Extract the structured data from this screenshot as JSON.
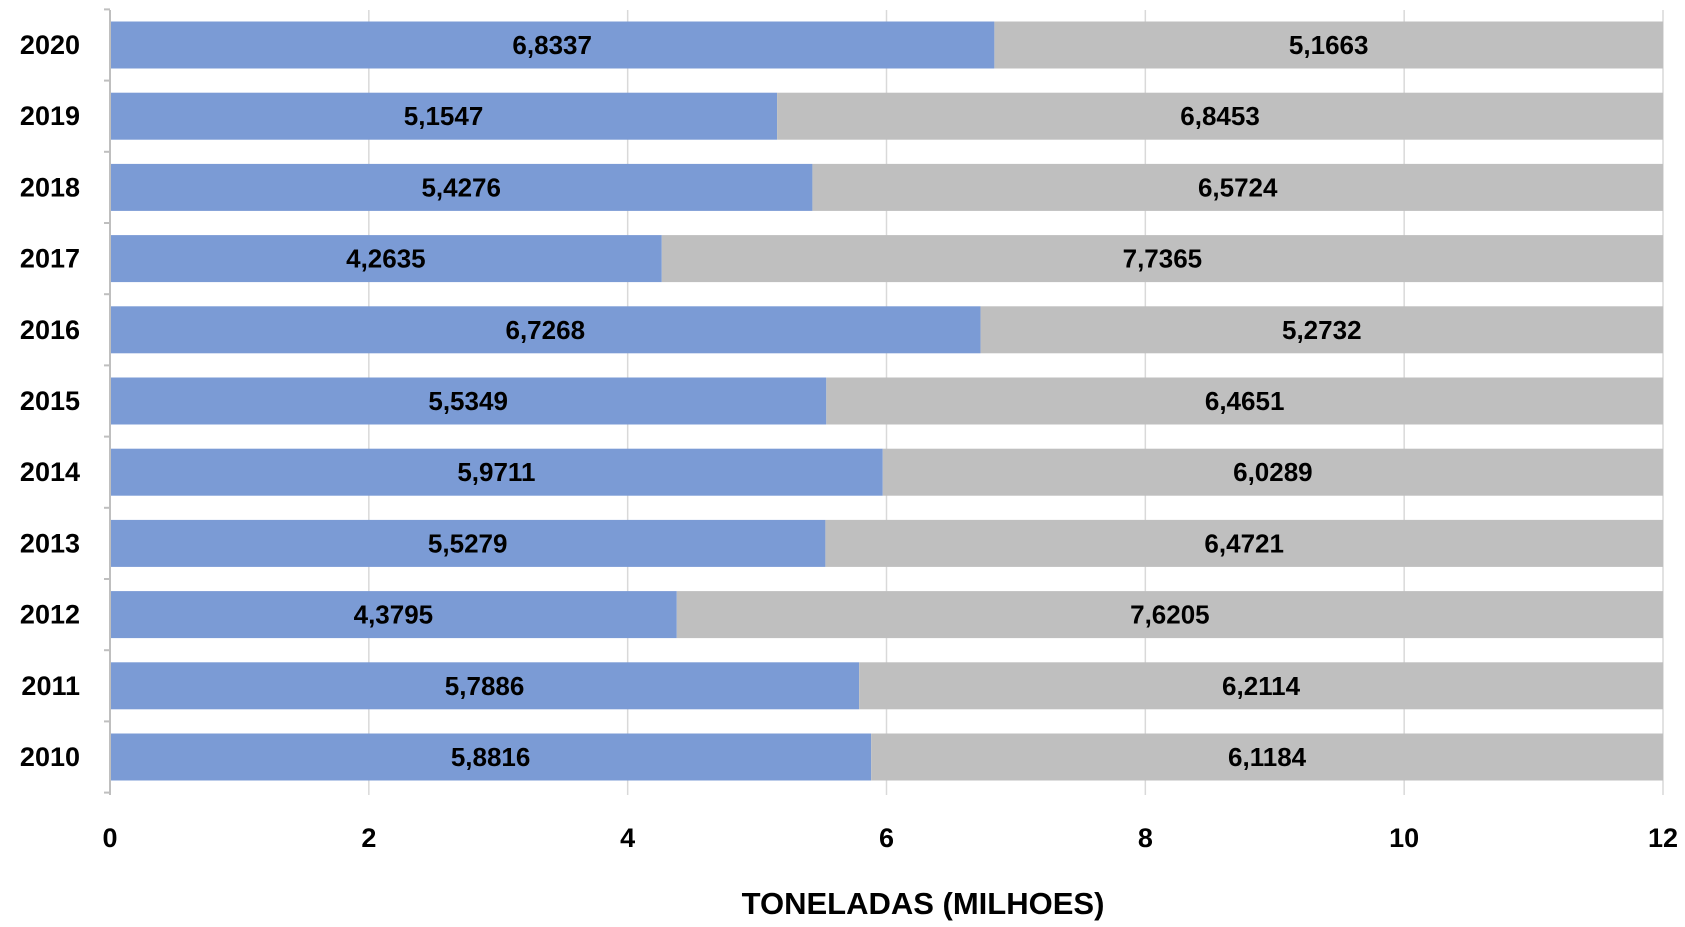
{
  "chart_data": {
    "type": "bar",
    "orientation": "horizontal",
    "stacked": true,
    "categories": [
      "2020",
      "2019",
      "2018",
      "2017",
      "2016",
      "2015",
      "2014",
      "2013",
      "2012",
      "2011",
      "2010"
    ],
    "series": [
      {
        "color": "#7b9bd5",
        "values": [
          6.8337,
          5.1547,
          5.4276,
          4.2635,
          6.7268,
          5.5349,
          5.9711,
          5.5279,
          4.3795,
          5.7886,
          5.8816
        ],
        "labels": [
          "6,8337",
          "5,1547",
          "5,4276",
          "4,2635",
          "6,7268",
          "5,5349",
          "5,9711",
          "5,5279",
          "4,3795",
          "5,7886",
          "5,8816"
        ]
      },
      {
        "color": "#bfbfbf",
        "values": [
          5.1663,
          6.8453,
          6.5724,
          7.7365,
          5.2732,
          6.4651,
          6.0289,
          6.4721,
          7.6205,
          6.2114,
          6.1184
        ],
        "labels": [
          "5,1663",
          "6,8453",
          "6,5724",
          "7,7365",
          "5,2732",
          "6,4651",
          "6,0289",
          "6,4721",
          "7,6205",
          "6,2114",
          "6,1184"
        ]
      }
    ],
    "xlim": [
      0,
      12
    ],
    "xticks": [
      0,
      2,
      4,
      6,
      8,
      10,
      12
    ],
    "xlabel": "TONELADAS (MILHOES)",
    "ylabel": "",
    "title": "",
    "grid": "vertical",
    "legend": "none"
  }
}
